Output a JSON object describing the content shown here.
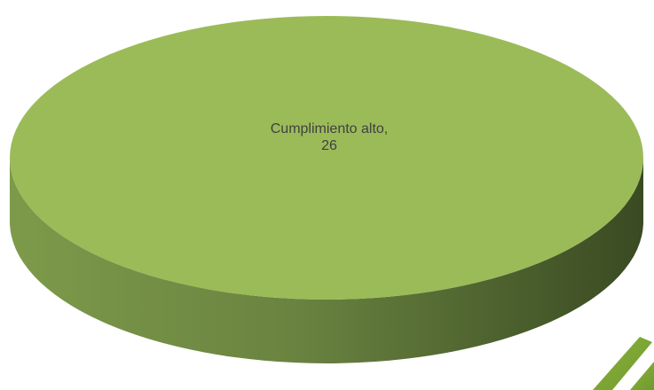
{
  "chart_data": {
    "type": "pie",
    "title": "",
    "slices": [
      {
        "label": "Cumplimiento alto",
        "value": 26,
        "color": "#9bbb59"
      }
    ],
    "labels": {
      "slice_0": "Cumplimiento alto,",
      "slice_0_value": "26"
    },
    "style": "3d",
    "legend": "none"
  }
}
